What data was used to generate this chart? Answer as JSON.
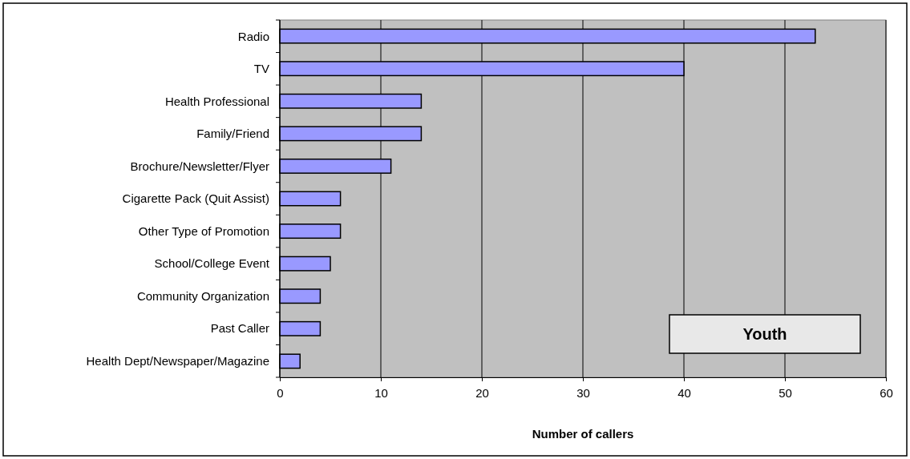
{
  "chart_data": {
    "type": "bar",
    "orientation": "horizontal",
    "categories": [
      "Radio",
      "TV",
      "Health Professional",
      "Family/Friend",
      "Brochure/Newsletter/Flyer",
      "Cigarette Pack (Quit Assist)",
      "Other Type of Promotion",
      "School/College Event",
      "Community Organization",
      "Past Caller",
      "Health Dept/Newspaper/Magazine"
    ],
    "values": [
      53,
      40,
      14,
      14,
      11,
      6,
      6,
      5,
      4,
      4,
      2
    ],
    "color": "#9999ff",
    "xlabel": "Number of callers",
    "xlim": [
      0,
      60
    ],
    "xticks": [
      0,
      10,
      20,
      30,
      40,
      50,
      60
    ],
    "grid": "x",
    "annotations": [
      "Youth"
    ]
  }
}
